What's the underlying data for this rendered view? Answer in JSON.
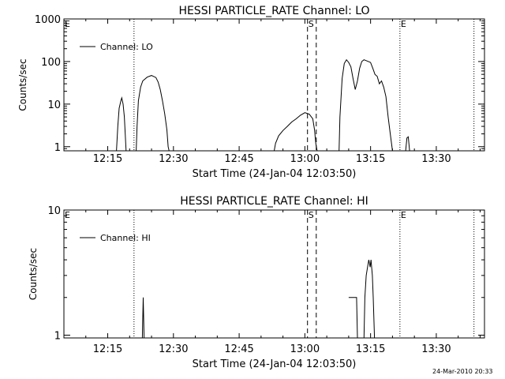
{
  "footer_timestamp": "24-Mar-2010 20:33",
  "colors": {
    "background": "#ffffff",
    "foreground": "#000000"
  },
  "chart_data": [
    {
      "type": "line",
      "title": "HESSI PARTICLE_RATE Channel: LO",
      "xlabel": "Start Time (24-Jan-04 12:03:50)",
      "ylabel": "Counts/sec",
      "yscale": "log",
      "xlim": [
        "12:05",
        "13:41"
      ],
      "ylim": [
        0.8,
        1000
      ],
      "xticks": [
        "12:15",
        "12:30",
        "12:45",
        "13:00",
        "13:15",
        "13:30"
      ],
      "yticks": [
        "1",
        "10",
        "100",
        "1000"
      ],
      "legend": {
        "placement": "top-left",
        "entries": [
          "Channel: LO"
        ]
      },
      "markers": [
        {
          "label": "E",
          "time": "12:05",
          "style": "dotted",
          "show_line": false
        },
        {
          "label": "",
          "time": "12:21",
          "style": "dotted",
          "show_line": true
        },
        {
          "label": "S",
          "time": "13:00.6",
          "style": "dashed",
          "show_line": true
        },
        {
          "label": "",
          "time": "13:02.6",
          "style": "dashed",
          "show_line": true
        },
        {
          "label": "E",
          "time": "13:21.7",
          "style": "dotted",
          "show_line": true
        },
        {
          "label": "",
          "time": "13:38.6",
          "style": "dotted",
          "show_line": true
        }
      ],
      "series": [
        {
          "segments": [
            [
              [
                "12:17.0",
                0.8
              ],
              [
                "12:17.3",
                3
              ],
              [
                "12:17.6",
                8
              ],
              [
                "12:18.0",
                12
              ],
              [
                "12:18.2",
                14
              ],
              [
                "12:18.5",
                10
              ],
              [
                "12:18.8",
                5
              ],
              [
                "12:19.0",
                2
              ],
              [
                "12:19.2",
                0.8
              ]
            ],
            [
              [
                "12:21.5",
                0.8
              ],
              [
                "12:21.7",
                3
              ],
              [
                "12:22.0",
                12
              ],
              [
                "12:22.5",
                25
              ],
              [
                "12:23.0",
                35
              ],
              [
                "12:24.0",
                43
              ],
              [
                "12:25.0",
                47
              ],
              [
                "12:26.0",
                42
              ],
              [
                "12:26.5",
                33
              ],
              [
                "12:27.0",
                22
              ],
              [
                "12:27.5",
                12
              ],
              [
                "12:28.0",
                6
              ],
              [
                "12:28.5",
                2.5
              ],
              [
                "12:28.8",
                1
              ],
              [
                "12:29.0",
                0.8
              ]
            ],
            [
              [
                "12:53.0",
                0.8
              ],
              [
                "12:53.3",
                1.2
              ],
              [
                "12:54.0",
                1.8
              ],
              [
                "12:55.0",
                2.4
              ],
              [
                "12:56.0",
                3.0
              ],
              [
                "12:57.0",
                3.8
              ],
              [
                "12:58.0",
                4.5
              ],
              [
                "12:59.0",
                5.5
              ],
              [
                "13:00.0",
                6.3
              ],
              [
                "13:01.0",
                5.8
              ],
              [
                "13:01.8",
                4.5
              ],
              [
                "13:02.2",
                2.5
              ],
              [
                "13:02.5",
                1.2
              ],
              [
                "13:02.8",
                0.8
              ]
            ],
            [
              [
                "13:07.8",
                0.8
              ],
              [
                "13:08.0",
                5
              ],
              [
                "13:08.5",
                40
              ],
              [
                "13:09.0",
                90
              ],
              [
                "13:09.5",
                110
              ],
              [
                "13:10.0",
                95
              ],
              [
                "13:10.5",
                75
              ],
              [
                "13:11.0",
                40
              ],
              [
                "13:11.5",
                22
              ],
              [
                "13:12.0",
                35
              ],
              [
                "13:12.5",
                70
              ],
              [
                "13:13.0",
                100
              ],
              [
                "13:13.5",
                110
              ],
              [
                "13:14.0",
                105
              ],
              [
                "13:14.5",
                100
              ],
              [
                "13:15.0",
                95
              ],
              [
                "13:15.5",
                70
              ],
              [
                "13:16.0",
                50
              ],
              [
                "13:16.5",
                45
              ],
              [
                "13:17.0",
                30
              ],
              [
                "13:17.5",
                35
              ],
              [
                "13:18.0",
                25
              ],
              [
                "13:18.5",
                15
              ],
              [
                "13:19.0",
                5
              ],
              [
                "13:19.5",
                2
              ],
              [
                "13:20.0",
                0.8
              ]
            ],
            [
              [
                "13:23.0",
                0.8
              ],
              [
                "13:23.3",
                1.6
              ],
              [
                "13:23.6",
                1.7
              ],
              [
                "13:23.9",
                0.8
              ]
            ]
          ]
        }
      ]
    },
    {
      "type": "line",
      "title": "HESSI PARTICLE_RATE Channel: HI",
      "xlabel": "Start Time (24-Jan-04 12:03:50)",
      "ylabel": "Counts/sec",
      "yscale": "log",
      "xlim": [
        "12:05",
        "13:41"
      ],
      "ylim": [
        0.95,
        10
      ],
      "xticks": [
        "12:15",
        "12:30",
        "12:45",
        "13:00",
        "13:15",
        "13:30"
      ],
      "yticks": [
        "1",
        "10"
      ],
      "legend": {
        "placement": "top-left",
        "entries": [
          "Channel: HI"
        ]
      },
      "markers": [
        {
          "label": "E",
          "time": "12:05",
          "style": "dotted",
          "show_line": false
        },
        {
          "label": "",
          "time": "12:21",
          "style": "dotted",
          "show_line": true
        },
        {
          "label": "S",
          "time": "13:00.6",
          "style": "dashed",
          "show_line": true
        },
        {
          "label": "",
          "time": "13:02.6",
          "style": "dashed",
          "show_line": true
        },
        {
          "label": "E",
          "time": "13:21.7",
          "style": "dotted",
          "show_line": true
        },
        {
          "label": "",
          "time": "13:38.6",
          "style": "dotted",
          "show_line": true
        }
      ],
      "series": [
        {
          "segments": [
            [
              [
                "12:22.9",
                0.95
              ],
              [
                "12:23.1",
                2
              ],
              [
                "12:23.3",
                0.95
              ]
            ],
            [
              [
                "13:10.0",
                2
              ],
              [
                "13:11.8",
                2
              ],
              [
                "13:12.0",
                0.95
              ]
            ],
            [
              [
                "13:13.5",
                0.95
              ],
              [
                "13:13.7",
                2
              ],
              [
                "13:14.0",
                3
              ],
              [
                "13:14.3",
                3.5
              ],
              [
                "13:14.6",
                4
              ],
              [
                "13:14.9",
                3.5
              ],
              [
                "13:15.1",
                4
              ],
              [
                "13:15.4",
                3
              ],
              [
                "13:15.6",
                2
              ],
              [
                "13:15.9",
                0.95
              ]
            ]
          ]
        }
      ]
    }
  ]
}
